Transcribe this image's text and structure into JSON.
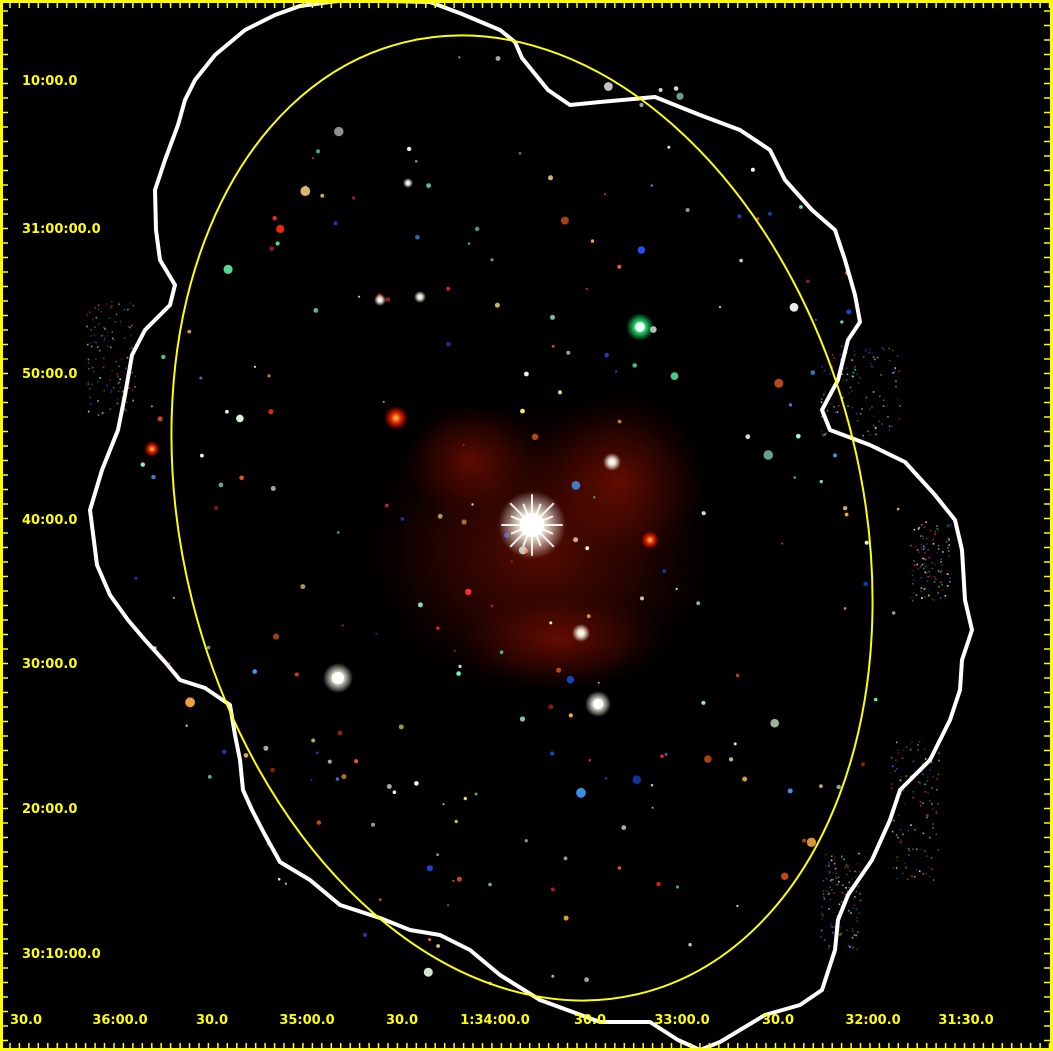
{
  "image": {
    "subject": "x-ray-sky-field",
    "colors": {
      "background": "#000000",
      "frame": "#ffff00",
      "coverage_outline": "#ffffff",
      "ellipse": "#ffff00",
      "diffuse_emission": "#8a1000"
    }
  },
  "axes": {
    "dec_labels": [
      "10:00.0",
      "31:00:00.0",
      "50:00.0",
      "40:00.0",
      "30:00.0",
      "20:00.0",
      "30:10:00.0"
    ],
    "ra_labels": [
      "30.0",
      "36:00.0",
      "30.0",
      "35:00.0",
      "30.0",
      "1:34:00.0",
      "30.0",
      "33:00.0",
      "30.0",
      "32:00.0",
      "31:30.0"
    ]
  }
}
